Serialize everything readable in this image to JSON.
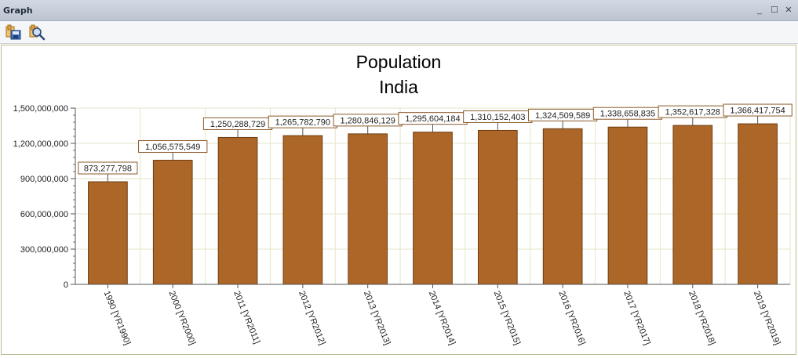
{
  "window": {
    "title": "Graph",
    "controls": {
      "minimize": "_",
      "maximize": "☐",
      "close": "✕"
    }
  },
  "toolbar": {
    "buttons": [
      {
        "icon": "save-chart-icon"
      },
      {
        "icon": "zoom-chart-icon"
      }
    ]
  },
  "colors": {
    "bar_fill": "#ac6628",
    "bar_stroke": "#6e3e12",
    "label_border": "#8a5a2a",
    "grid": "#e6e6c8"
  },
  "chart_data": {
    "type": "bar",
    "title": "Population",
    "subtitle": "India",
    "xlabel": "",
    "ylabel": "",
    "ylim": [
      0,
      1500000000
    ],
    "yticks": [
      0,
      300000000,
      600000000,
      900000000,
      1200000000,
      1500000000
    ],
    "ytick_labels": [
      "0",
      "300,000,000",
      "600,000,000",
      "900,000,000",
      "1,200,000,000",
      "1,500,000,000"
    ],
    "grid": true,
    "categories": [
      "1990 [YR1990]",
      "2000 [YR2000]",
      "2011 [YR2011]",
      "2012 [YR2012]",
      "2013 [YR2013]",
      "2014 [YR2014]",
      "2015 [YR2015]",
      "2016 [YR2016]",
      "2017 [YR2017]",
      "2018 [YR2018]",
      "2019 [YR2019]"
    ],
    "values": [
      873277798,
      1056575549,
      1250288729,
      1265782790,
      1280846129,
      1295604184,
      1310152403,
      1324509589,
      1338658835,
      1352617328,
      1366417754
    ],
    "value_labels": [
      "873,277,798",
      "1,056,575,549",
      "1,250,288,729",
      "1,265,782,790",
      "1,280,846,129",
      "1,295,604,184",
      "1,310,152,403",
      "1,324,509,589",
      "1,338,658,835",
      "1,352,617,328",
      "1,366,417,754"
    ]
  }
}
